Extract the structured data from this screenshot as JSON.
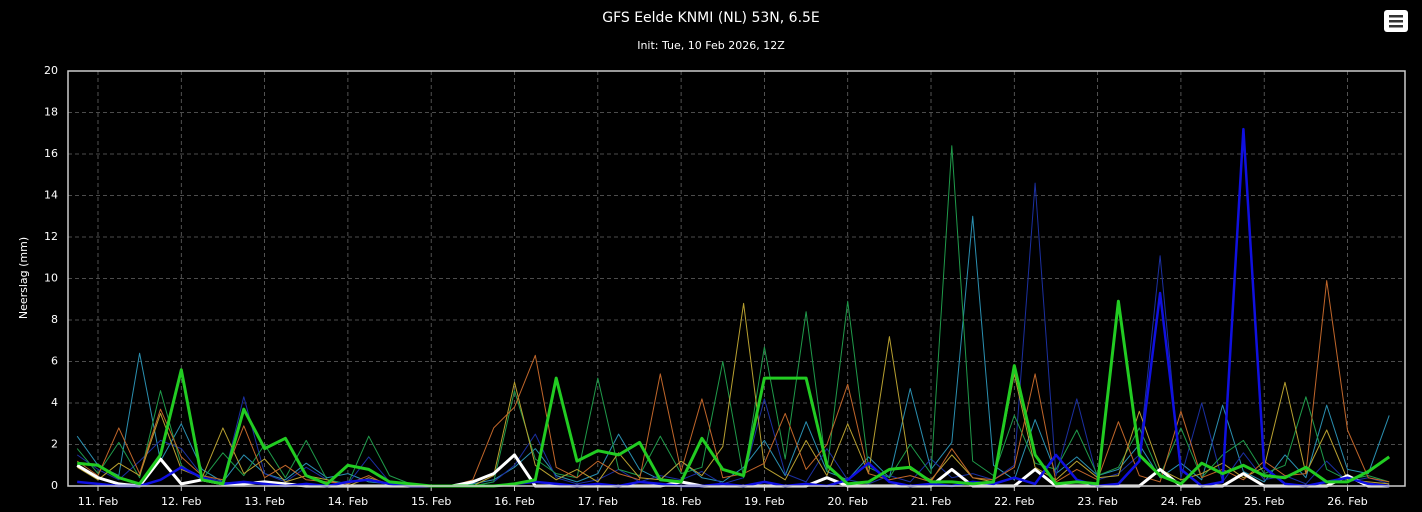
{
  "chart_data": {
    "type": "line",
    "title": "GFS Eelde KNMI (NL) 53N, 6.5E",
    "subtitle": "Init: Tue, 10 Feb 2026, 12Z",
    "y_label": "Neerslag (mm)",
    "grid": true,
    "xlim": [
      10.64,
      26.69
    ],
    "xticks": [
      {
        "value": 11,
        "label": "11. Feb"
      },
      {
        "value": 12,
        "label": "12. Feb"
      },
      {
        "value": 13,
        "label": "13. Feb"
      },
      {
        "value": 14,
        "label": "14. Feb"
      },
      {
        "value": 15,
        "label": "15. Feb"
      },
      {
        "value": 16,
        "label": "16. Feb"
      },
      {
        "value": 17,
        "label": "17. Feb"
      },
      {
        "value": 18,
        "label": "18. Feb"
      },
      {
        "value": 19,
        "label": "19. Feb"
      },
      {
        "value": 20,
        "label": "20. Feb"
      },
      {
        "value": 21,
        "label": "21. Feb"
      },
      {
        "value": 22,
        "label": "22. Feb"
      },
      {
        "value": 23,
        "label": "23. Feb"
      },
      {
        "value": 24,
        "label": "24. Feb"
      },
      {
        "value": 25,
        "label": "25. Feb"
      },
      {
        "value": 26,
        "label": "26. Feb"
      }
    ],
    "ylim": [
      0,
      20
    ],
    "yticks": [
      0,
      2,
      4,
      6,
      8,
      10,
      12,
      14,
      16,
      18,
      20
    ],
    "x": [
      10.75,
      11,
      11.25,
      11.5,
      11.75,
      12,
      12.25,
      12.5,
      12.75,
      13,
      13.25,
      13.5,
      13.75,
      14,
      14.25,
      14.5,
      14.75,
      15,
      15.25,
      15.5,
      15.75,
      16,
      16.25,
      16.5,
      16.75,
      17,
      17.25,
      17.5,
      17.75,
      18,
      18.25,
      18.5,
      18.75,
      19,
      19.25,
      19.5,
      19.75,
      20,
      20.25,
      20.5,
      20.75,
      21,
      21.25,
      21.5,
      21.75,
      22,
      22.25,
      22.5,
      22.75,
      23,
      23.25,
      23.5,
      23.75,
      24,
      24.25,
      24.5,
      24.75,
      25,
      25.25,
      25.5,
      25.75,
      26,
      26.25,
      26.5
    ],
    "series": [
      {
        "color": "#2a8fb0",
        "width": 1,
        "values": [
          2.4,
          1.0,
          0.5,
          6.4,
          1.2,
          3.0,
          0.8,
          0.2,
          1.5,
          0.6,
          0.3,
          1.1,
          0.4,
          0.6,
          0.2,
          0.1,
          0,
          0,
          0,
          0.1,
          0.3,
          0.9,
          1.8,
          0.5,
          0.2,
          0.6,
          2.5,
          0.8,
          0.3,
          1.2,
          0.4,
          0.2,
          0.9,
          2.2,
          0.5,
          3.1,
          0.7,
          0.3,
          1.4,
          0.4,
          4.7,
          0.8,
          2.1,
          13.0,
          1.0,
          0.3,
          3.2,
          0.6,
          1.4,
          0.5,
          0.8,
          2.0,
          0.4,
          1.1,
          0.3,
          3.9,
          0.7,
          0.2,
          1.5,
          0.4,
          3.9,
          0.8,
          0.6,
          3.4
        ]
      },
      {
        "color": "#1b2fa0",
        "width": 1,
        "values": [
          1.5,
          0.8,
          0.3,
          1.2,
          2.2,
          1.8,
          0.5,
          0.2,
          4.3,
          0.6,
          0.2,
          0.9,
          0.3,
          0.1,
          1.4,
          0.2,
          0,
          0,
          0,
          0,
          0.2,
          1.0,
          2.5,
          0.4,
          0.1,
          0.3,
          0.8,
          0.2,
          0.5,
          0.3,
          0.7,
          0.1,
          0.4,
          4.2,
          0.6,
          0.2,
          1.8,
          0.3,
          0.1,
          0.5,
          0.2,
          1.3,
          0.4,
          0.6,
          0.3,
          1.0,
          14.6,
          0.5,
          4.2,
          0.3,
          0.6,
          1.5,
          11.1,
          0.4,
          4.0,
          0.2,
          1.6,
          0.3,
          0.5,
          0.1,
          1.2,
          0.2,
          0.4,
          0.1
        ]
      },
      {
        "color": "#1f9a4a",
        "width": 1,
        "values": [
          1.8,
          0.6,
          2.1,
          0.4,
          4.6,
          1.0,
          0.3,
          1.6,
          0.5,
          2.0,
          0.4,
          2.2,
          0.3,
          0.1,
          2.4,
          0.5,
          0.1,
          0,
          0,
          0,
          0.2,
          4.6,
          1.3,
          0.6,
          0.4,
          5.2,
          0.8,
          0.5,
          2.4,
          0.6,
          0.9,
          6.0,
          0.4,
          6.7,
          1.3,
          8.4,
          0.7,
          8.9,
          0.9,
          0.4,
          2.0,
          0.6,
          16.4,
          1.2,
          0.5,
          3.4,
          1.1,
          0.8,
          2.7,
          0.5,
          0.9,
          2.8,
          0.5,
          2.8,
          0.4,
          1.5,
          2.2,
          0.6,
          1.0,
          4.3,
          0.8,
          0.3,
          0.5,
          0.2
        ]
      },
      {
        "color": "#b8a030",
        "width": 1,
        "values": [
          0.9,
          0.3,
          1.1,
          0.5,
          3.5,
          0.8,
          0.4,
          2.8,
          0.6,
          1.3,
          0.2,
          0.5,
          0.3,
          0,
          0.4,
          0.1,
          0,
          0,
          0,
          0,
          0.5,
          5.0,
          1.0,
          0.3,
          0.8,
          0.2,
          1.6,
          0.4,
          0.3,
          1.2,
          0.5,
          1.9,
          8.8,
          0.9,
          0.3,
          2.2,
          0.5,
          3.0,
          0.6,
          7.2,
          0.8,
          0.3,
          1.5,
          0.4,
          0.2,
          5.4,
          0.9,
          0.3,
          1.2,
          0.4,
          0.5,
          3.6,
          0.8,
          0.3,
          0.6,
          1.1,
          0.4,
          0.9,
          5.0,
          0.6,
          2.7,
          0.3,
          0.2,
          0.1
        ]
      },
      {
        "color": "#c0662a",
        "width": 1,
        "values": [
          1.2,
          0.5,
          2.8,
          0.6,
          3.7,
          1.4,
          0.5,
          0.3,
          2.9,
          0.4,
          1.0,
          0.3,
          0.2,
          0.1,
          0.5,
          0,
          0,
          0,
          0,
          0.3,
          2.8,
          3.8,
          6.3,
          0.9,
          0.4,
          1.2,
          0.6,
          0.3,
          5.4,
          0.7,
          4.2,
          0.4,
          0.6,
          1.1,
          3.5,
          0.8,
          2.0,
          4.9,
          0.6,
          0.3,
          0.5,
          0.2,
          1.8,
          0.4,
          0.3,
          0.9,
          5.4,
          0.2,
          0.8,
          0.3,
          3.1,
          0.5,
          0.2,
          3.6,
          0.4,
          0.8,
          0.3,
          1.2,
          0.5,
          0.6,
          9.9,
          2.7,
          0.4,
          0.2
        ]
      },
      {
        "color": "#ffffff",
        "width": 3,
        "values": [
          1.0,
          0.4,
          0.1,
          0,
          1.3,
          0.1,
          0.3,
          0.1,
          0.1,
          0.2,
          0.1,
          0,
          0,
          0,
          0,
          0,
          0,
          0,
          0,
          0.2,
          0.6,
          1.5,
          0,
          0,
          0,
          0,
          0,
          0,
          0,
          0.2,
          0,
          0,
          0,
          0,
          0,
          0,
          0.4,
          0,
          0,
          0,
          0,
          0,
          0.8,
          0,
          0,
          0,
          0.8,
          0,
          0,
          0,
          0,
          0,
          0.8,
          0,
          0,
          0,
          0.6,
          0,
          0,
          0,
          0,
          0.5,
          0,
          0
        ]
      },
      {
        "color": "#1010e0",
        "width": 2.5,
        "values": [
          0.2,
          0.1,
          0,
          0,
          0.3,
          0.9,
          0.4,
          0.1,
          0.2,
          0.1,
          0,
          0.1,
          0,
          0.2,
          0.3,
          0.1,
          0,
          0,
          0,
          0,
          0,
          0.1,
          0.2,
          0.1,
          0,
          0.1,
          0,
          0.2,
          0.1,
          0,
          0,
          0.1,
          0,
          0.2,
          0,
          0.1,
          0,
          0.3,
          1.1,
          0.2,
          0,
          0.1,
          0,
          0.2,
          0.1,
          0.4,
          0.1,
          1.5,
          0.3,
          0,
          0.1,
          1.2,
          9.3,
          0.8,
          0,
          0.2,
          17.2,
          0.9,
          0.1,
          0,
          0.2,
          0.4,
          0.1,
          0
        ]
      },
      {
        "color": "#22cc22",
        "width": 3,
        "values": [
          1.1,
          1.0,
          0.4,
          0.1,
          1.5,
          5.6,
          0.3,
          0.1,
          3.7,
          1.8,
          2.3,
          0.5,
          0.1,
          1.0,
          0.8,
          0.2,
          0.1,
          0,
          0,
          0,
          0,
          0.1,
          0.3,
          5.2,
          1.2,
          1.7,
          1.5,
          2.1,
          0.3,
          0.2,
          2.3,
          0.8,
          0.5,
          5.2,
          5.2,
          5.2,
          1.0,
          0.1,
          0.2,
          0.8,
          0.9,
          0.2,
          0.2,
          0.1,
          0.2,
          5.8,
          1.5,
          0.1,
          0.2,
          0.1,
          8.9,
          1.5,
          0.5,
          0.1,
          1.1,
          0.6,
          1.0,
          0.5,
          0.4,
          0.9,
          0.2,
          0.2,
          0.7,
          1.4
        ]
      }
    ]
  }
}
